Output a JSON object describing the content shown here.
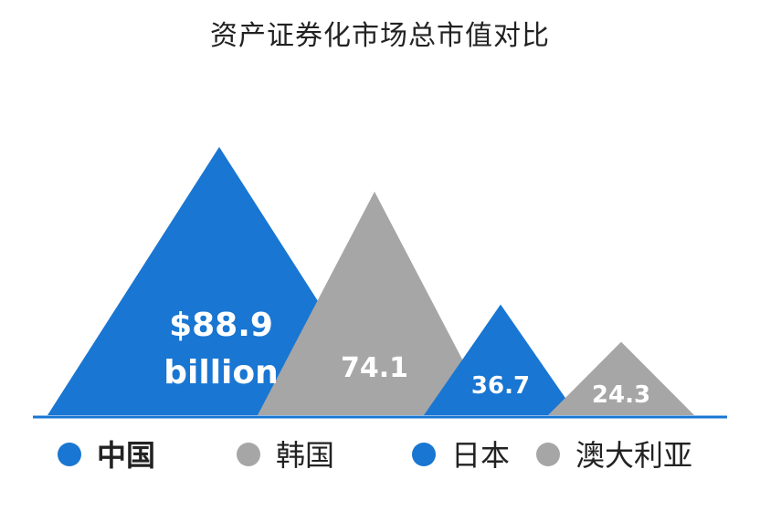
{
  "chart_data": {
    "type": "bar",
    "title": "资产证券化市场总市值对比",
    "categories": [
      "中国",
      "韩国",
      "日本",
      "澳大利亚"
    ],
    "values": [
      88.9,
      74.1,
      36.7,
      24.3
    ],
    "value_labels": [
      "$88.9",
      "74.1",
      "36.7",
      "24.3"
    ],
    "first_label_suffix": "billion",
    "colors": [
      "#1976d2",
      "#a6a6a6",
      "#1976d2",
      "#a6a6a6"
    ],
    "legend_bold": [
      true,
      false,
      false,
      false
    ],
    "mark_shape": "triangle",
    "legend_placement": "bottom",
    "grid": false
  }
}
